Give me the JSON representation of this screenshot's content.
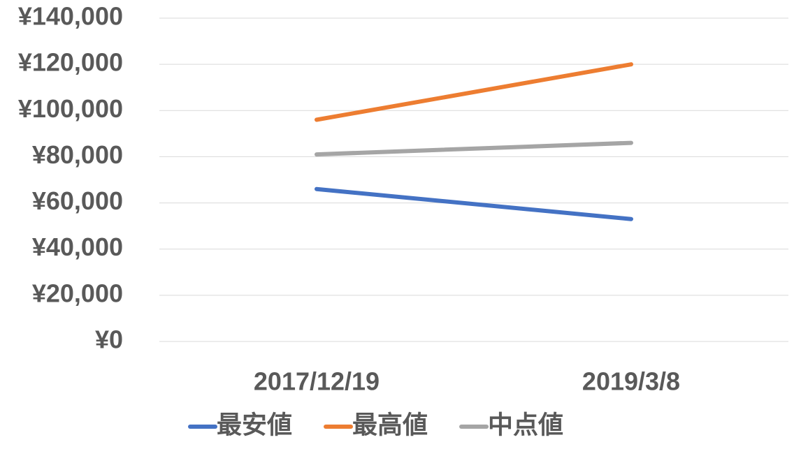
{
  "chart_data": {
    "type": "line",
    "categories": [
      "2017/12/19",
      "2019/3/8"
    ],
    "series": [
      {
        "name": "最安値",
        "color": "#4472c4",
        "values": [
          66000,
          53000
        ]
      },
      {
        "name": "最高値",
        "color": "#ed7d31",
        "values": [
          96000,
          120000
        ]
      },
      {
        "name": "中点値",
        "color": "#a5a5a5",
        "values": [
          81000,
          86000
        ]
      }
    ],
    "ylim": [
      0,
      140000
    ],
    "yticks": [
      {
        "value": 0,
        "label": "¥0"
      },
      {
        "value": 20000,
        "label": "¥20,000"
      },
      {
        "value": 40000,
        "label": "¥40,000"
      },
      {
        "value": 60000,
        "label": "¥60,000"
      },
      {
        "value": 80000,
        "label": "¥80,000"
      },
      {
        "value": 100000,
        "label": "¥100,000"
      },
      {
        "value": 120000,
        "label": "¥120,000"
      },
      {
        "value": 140000,
        "label": "¥140,000"
      }
    ],
    "grid": true,
    "legend": "bottom"
  }
}
